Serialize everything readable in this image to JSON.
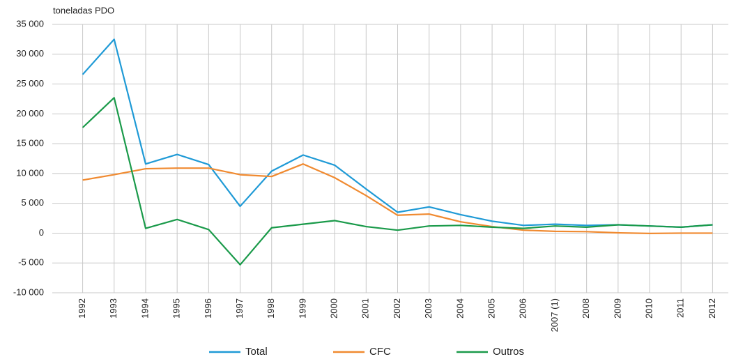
{
  "chart_data": {
    "type": "line",
    "ylabel": "toneladas PDO",
    "categories": [
      "1992",
      "1993",
      "1994",
      "1995",
      "1996",
      "1997",
      "1998",
      "1999",
      "2000",
      "2001",
      "2002",
      "2003",
      "2004",
      "2005",
      "2006",
      "2007 (1)",
      "2008",
      "2009",
      "2010",
      "2011",
      "2012"
    ],
    "series": [
      {
        "name": "Total",
        "color": "#1f9ad6",
        "values": [
          26600,
          32500,
          11600,
          13200,
          11500,
          4500,
          10400,
          13100,
          11400,
          7400,
          3500,
          4400,
          3100,
          2000,
          1300,
          1500,
          1300,
          1400,
          1200,
          1000,
          1400
        ]
      },
      {
        "name": "CFC",
        "color": "#f08a30",
        "values": [
          8900,
          9800,
          10800,
          10900,
          10900,
          9800,
          9500,
          11600,
          9300,
          6300,
          3000,
          3200,
          1900,
          1100,
          500,
          300,
          250,
          50,
          -50,
          0,
          0
        ]
      },
      {
        "name": "Outros",
        "color": "#1a9a4a",
        "values": [
          17700,
          22700,
          800,
          2300,
          600,
          -5300,
          900,
          1500,
          2100,
          1100,
          500,
          1200,
          1300,
          1000,
          800,
          1200,
          1000,
          1400,
          1200,
          1000,
          1400
        ]
      }
    ],
    "ylim": [
      -10000,
      35000
    ],
    "yticks": [
      {
        "value": -10000,
        "label": "-10 000"
      },
      {
        "value": -5000,
        "label": "-5 000"
      },
      0,
      {
        "value": 5000,
        "label": "5 000"
      },
      {
        "value": 10000,
        "label": "10 000"
      },
      {
        "value": 15000,
        "label": "15 000"
      },
      {
        "value": 20000,
        "label": "20 000"
      },
      {
        "value": 25000,
        "label": "25 000"
      },
      {
        "value": 30000,
        "label": "30 000"
      },
      {
        "value": 35000,
        "label": "35 000"
      }
    ],
    "grid": true,
    "legend": "bottom"
  }
}
